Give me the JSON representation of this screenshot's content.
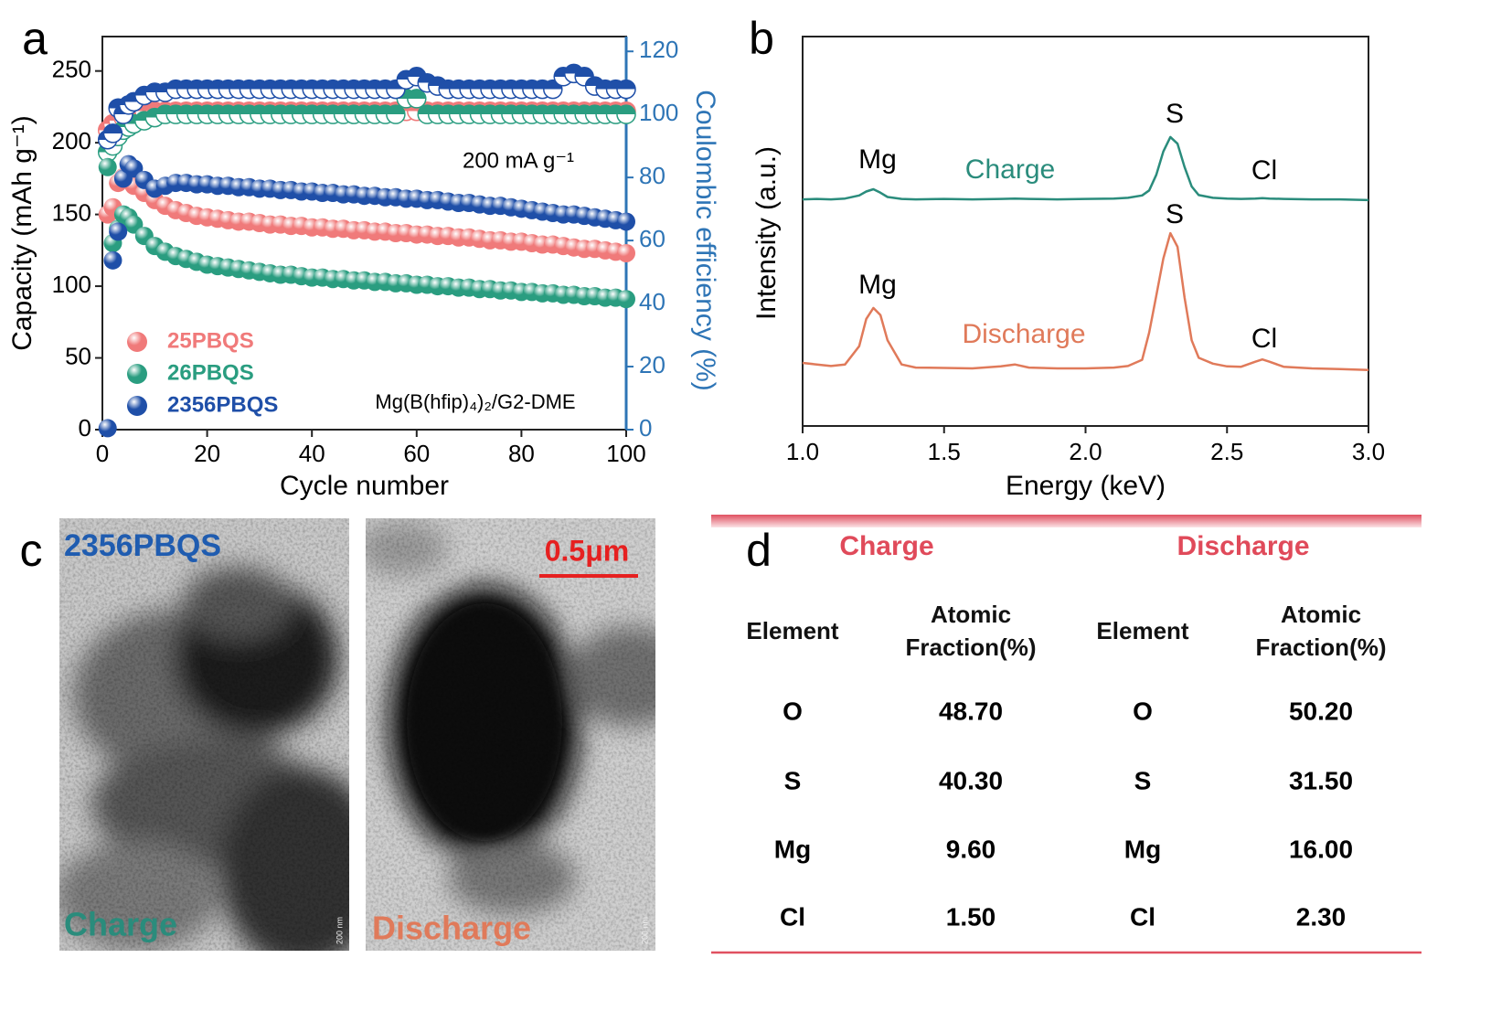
{
  "panel_labels": [
    "a",
    "b",
    "c",
    "d"
  ],
  "chart_data": [
    {
      "type": "scatter",
      "xlabel": "Cycle number",
      "ylabel": "Capacity (mAh g⁻¹)",
      "y2label": "Coulombic efficiency (%)",
      "annotations": [
        "200 mA g⁻¹",
        "Mg(B(hfip)₄)₂/G2-DME"
      ],
      "xlim": [
        0,
        100
      ],
      "xticks": [
        0,
        20,
        40,
        60,
        80,
        100
      ],
      "ylim": [
        0,
        274
      ],
      "yticks": [
        0,
        50,
        100,
        150,
        200,
        250
      ],
      "y2lim": [
        0,
        124.7
      ],
      "y2ticks": [
        0,
        20,
        40,
        60,
        80,
        100,
        120
      ],
      "y2color": "#2e75b6",
      "legend": "lower left",
      "x": [
        1,
        2,
        3,
        4,
        5,
        6,
        8,
        10,
        12,
        14,
        16,
        18,
        20,
        22,
        24,
        26,
        28,
        30,
        32,
        34,
        36,
        38,
        40,
        42,
        44,
        46,
        48,
        50,
        52,
        54,
        56,
        58,
        60,
        62,
        64,
        66,
        68,
        70,
        72,
        74,
        76,
        78,
        80,
        82,
        84,
        86,
        88,
        90,
        92,
        94,
        96,
        98,
        100
      ],
      "series": [
        {
          "name": "25PBQS",
          "color": "#f07a7a",
          "values": [
            150,
            155,
            172,
            176,
            175,
            170,
            165,
            160,
            156,
            153,
            151,
            149,
            148,
            147,
            146,
            145,
            145,
            144,
            143,
            143,
            142,
            142,
            141,
            141,
            140,
            140,
            139,
            139,
            138,
            138,
            137,
            137,
            136,
            136,
            135,
            135,
            134,
            134,
            133,
            132,
            132,
            131,
            131,
            130,
            129,
            129,
            128,
            127,
            126,
            126,
            125,
            124,
            123
          ],
          "y2_values": [
            95,
            97,
            98,
            99,
            100,
            100,
            101,
            101,
            101,
            101,
            101,
            101,
            101,
            101,
            101,
            101,
            101,
            101,
            101,
            101,
            101,
            101,
            101,
            101,
            101,
            101,
            101,
            101,
            101,
            101,
            101,
            101,
            101,
            101,
            101,
            101,
            101,
            101,
            101,
            101,
            101,
            101,
            101,
            101,
            101,
            101,
            101,
            101,
            101,
            101,
            101,
            101,
            101
          ]
        },
        {
          "name": "26PBQS",
          "color": "#2a9d80",
          "values": [
            183,
            130,
            140,
            150,
            148,
            143,
            135,
            128,
            124,
            121,
            119,
            117,
            115,
            114,
            113,
            112,
            111,
            110,
            109,
            108,
            108,
            107,
            106,
            106,
            105,
            105,
            104,
            104,
            103,
            103,
            102,
            102,
            101,
            101,
            100,
            100,
            99,
            99,
            98,
            98,
            97,
            97,
            96,
            96,
            95,
            95,
            94,
            94,
            93,
            93,
            92,
            92,
            91
          ],
          "y2_values": [
            88,
            90,
            93,
            95,
            96,
            97,
            98,
            99,
            100,
            100,
            100,
            100,
            100,
            100,
            100,
            100,
            100,
            100,
            100,
            100,
            100,
            100,
            100,
            100,
            100,
            100,
            100,
            100,
            100,
            100,
            100,
            105,
            105,
            100,
            100,
            100,
            100,
            100,
            100,
            100,
            100,
            100,
            100,
            100,
            100,
            100,
            100,
            100,
            100,
            100,
            100,
            100,
            100
          ]
        },
        {
          "name": "2356PBQS",
          "color": "#1f4fa8",
          "values": [
            1,
            118,
            138,
            175,
            185,
            182,
            174,
            168,
            170,
            172,
            172,
            171,
            171,
            170,
            170,
            169,
            169,
            168,
            168,
            167,
            167,
            166,
            166,
            165,
            165,
            164,
            164,
            163,
            163,
            162,
            162,
            161,
            161,
            160,
            160,
            159,
            158,
            158,
            157,
            156,
            156,
            155,
            154,
            153,
            152,
            151,
            150,
            150,
            149,
            148,
            147,
            146,
            145
          ],
          "y2_values": [
            92,
            94,
            102,
            100,
            103,
            104,
            106,
            107,
            107,
            108,
            108,
            108,
            108,
            108,
            108,
            108,
            108,
            108,
            108,
            108,
            108,
            108,
            108,
            108,
            108,
            108,
            108,
            108,
            108,
            108,
            108,
            111,
            112,
            110,
            109,
            108,
            108,
            108,
            108,
            108,
            108,
            108,
            108,
            108,
            108,
            108,
            112,
            113,
            112,
            109,
            108,
            108,
            108
          ]
        }
      ]
    },
    {
      "type": "line",
      "xlabel": "Energy (keV)",
      "ylabel": "Intensity (a.u.)",
      "xlim": [
        1.0,
        3.0
      ],
      "xticks": [
        {
          "value": 1.0,
          "label": "1.0"
        },
        {
          "value": 1.5,
          "label": "1.5"
        },
        {
          "value": 2.0,
          "label": "2.0"
        },
        {
          "value": 2.5,
          "label": "2.5"
        },
        {
          "value": 3.0,
          "label": "3.0"
        }
      ],
      "ylim": [
        0,
        100
      ],
      "x": [
        1.0,
        1.05,
        1.1,
        1.15,
        1.2,
        1.225,
        1.25,
        1.275,
        1.3,
        1.35,
        1.4,
        1.5,
        1.6,
        1.7,
        1.75,
        1.8,
        1.9,
        2.0,
        2.1,
        2.15,
        2.2,
        2.225,
        2.25,
        2.275,
        2.3,
        2.325,
        2.35,
        2.375,
        2.4,
        2.45,
        2.5,
        2.55,
        2.6,
        2.625,
        2.65,
        2.7,
        2.8,
        2.9,
        3.0
      ],
      "series": [
        {
          "name": "Charge",
          "color": "#2a8c7c",
          "peaks": [
            "Mg",
            "S",
            "Cl"
          ],
          "values": [
            58.2,
            58.3,
            58.2,
            58.4,
            59.2,
            60.2,
            60.8,
            59.9,
            58.8,
            58.3,
            58.2,
            58.3,
            58.2,
            58.3,
            58.4,
            58.3,
            58.2,
            58.3,
            58.4,
            58.6,
            59.2,
            60.5,
            64.5,
            70.5,
            74.2,
            72.5,
            66.5,
            61.5,
            59.3,
            58.6,
            58.4,
            58.3,
            58.4,
            58.5,
            58.4,
            58.3,
            58.2,
            58.2,
            58.0
          ]
        },
        {
          "name": "Discharge",
          "color": "#e07a5a",
          "peaks": [
            "Mg",
            "S",
            "Cl"
          ],
          "values": [
            16.2,
            15.8,
            15.4,
            15.8,
            20.5,
            27.5,
            30.3,
            28.5,
            22.0,
            15.8,
            15.0,
            14.9,
            14.8,
            15.3,
            15.8,
            15.0,
            14.8,
            14.8,
            15.0,
            15.4,
            17.0,
            24.0,
            33.5,
            43.0,
            49.5,
            46.0,
            33.0,
            22.0,
            17.5,
            16.0,
            15.3,
            15.2,
            16.5,
            17.1,
            16.5,
            15.2,
            14.8,
            14.6,
            14.4
          ]
        }
      ]
    }
  ],
  "images": {
    "title": "2356PBQS",
    "scale_bar": "0.5μm",
    "scale_note": "200 nm",
    "labels": [
      "Charge",
      "Discharge"
    ]
  },
  "table": {
    "groups": [
      "Charge",
      "Discharge"
    ],
    "header": [
      "Element",
      "Atomic Fraction(%)",
      "Element",
      "Atomic Fraction(%)"
    ],
    "rows": [
      [
        "O",
        "48.70",
        "O",
        "50.20"
      ],
      [
        "S",
        "40.30",
        "S",
        "31.50"
      ],
      [
        "Mg",
        "9.60",
        "Mg",
        "16.00"
      ],
      [
        "Cl",
        "1.50",
        "Cl",
        "2.30"
      ]
    ]
  }
}
